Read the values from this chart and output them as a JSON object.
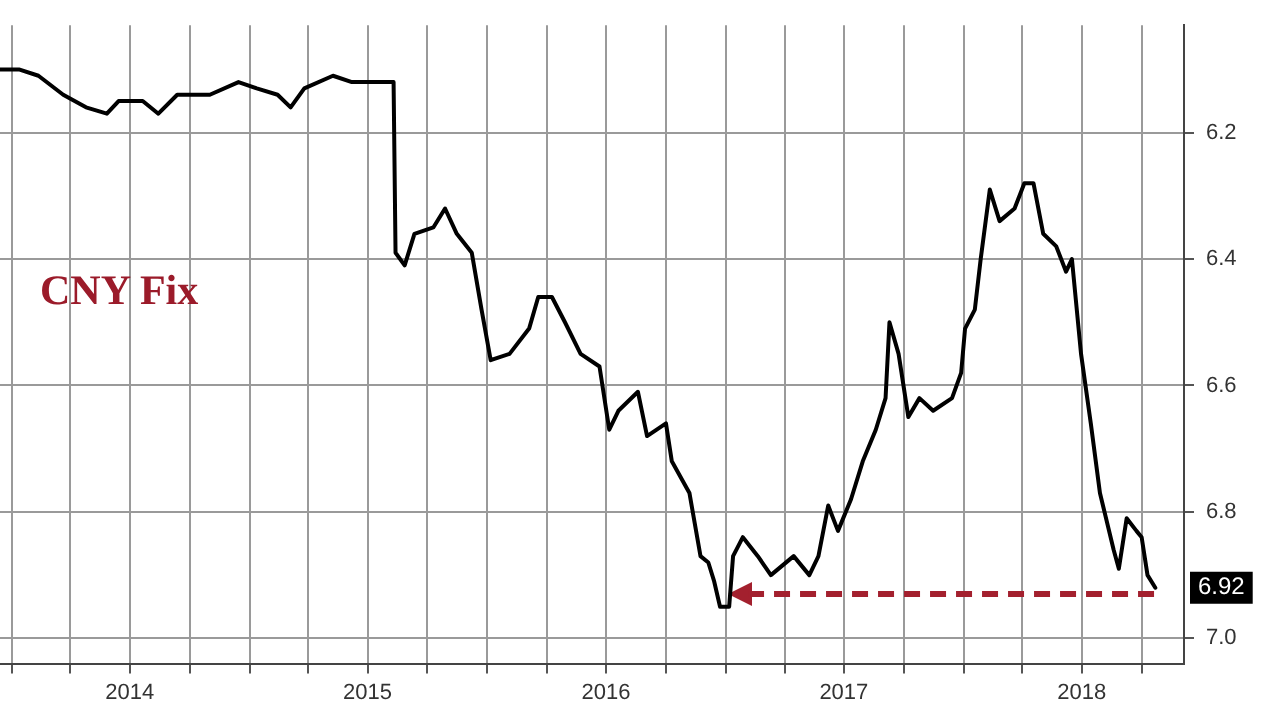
{
  "chart_data": {
    "type": "line",
    "annotations": [
      "CNY Fix",
      {
        "text": "6.92",
        "x": "2018-10-22",
        "y": 6.92
      }
    ],
    "x": [
      "2013-12-14",
      "2014-01-12",
      "2014-02-11",
      "2014-03-21",
      "2014-04-25",
      "2014-05-27",
      "2014-06-14",
      "2014-07-21",
      "2014-08-14",
      "2014-09-12",
      "2014-11-01",
      "2014-12-15",
      "2015-01-12",
      "2015-02-13",
      "2015-03-05",
      "2015-03-26",
      "2015-05-09",
      "2015-06-07",
      "2015-07-06",
      "2015-08-10",
      "2015-08-13",
      "2015-08-27",
      "2015-09-11",
      "2015-10-10",
      "2015-10-28",
      "2015-11-15",
      "2015-12-08",
      "2015-12-23",
      "2016-01-06",
      "2016-02-04",
      "2016-03-05",
      "2016-03-19",
      "2016-04-09",
      "2016-04-29",
      "2016-05-23",
      "2016-06-21",
      "2016-07-06",
      "2016-07-20",
      "2016-08-19",
      "2016-09-02",
      "2016-10-01",
      "2016-10-10",
      "2016-11-06",
      "2016-11-23",
      "2016-12-05",
      "2016-12-14",
      "2016-12-23",
      "2017-01-06",
      "2017-01-12",
      "2017-01-27",
      "2017-02-19",
      "2017-03-11",
      "2017-04-15",
      "2017-05-09",
      "2017-05-23",
      "2017-06-07",
      "2017-06-22",
      "2017-07-12",
      "2017-07-30",
      "2017-08-19",
      "2017-09-03",
      "2017-09-09",
      "2017-09-23",
      "2017-10-08",
      "2017-10-25",
      "2017-11-15",
      "2017-12-14",
      "2017-12-28",
      "2018-01-03",
      "2018-01-18",
      "2018-01-27",
      "2018-02-10",
      "2018-02-25",
      "2018-03-20",
      "2018-04-04",
      "2018-04-18",
      "2018-05-03",
      "2018-05-23",
      "2018-06-07",
      "2018-06-16",
      "2018-06-30",
      "2018-07-15",
      "2018-07-29",
      "2018-08-19",
      "2018-08-27",
      "2018-09-08",
      "2018-09-23",
      "2018-10-01",
      "2018-10-10",
      "2018-10-22"
    ],
    "series": [
      {
        "color": "#000000",
        "values": [
          6.1,
          6.1,
          6.11,
          6.14,
          6.16,
          6.17,
          6.15,
          6.15,
          6.17,
          6.14,
          6.14,
          6.12,
          6.13,
          6.14,
          6.16,
          6.13,
          6.11,
          6.12,
          6.12,
          6.12,
          6.39,
          6.41,
          6.36,
          6.35,
          6.32,
          6.36,
          6.39,
          6.48,
          6.56,
          6.55,
          6.51,
          6.46,
          6.46,
          6.5,
          6.55,
          6.57,
          6.67,
          6.64,
          6.61,
          6.68,
          6.66,
          6.72,
          6.77,
          6.87,
          6.88,
          6.91,
          6.95,
          6.95,
          6.87,
          6.84,
          6.87,
          6.9,
          6.87,
          6.9,
          6.87,
          6.79,
          6.83,
          6.78,
          6.72,
          6.67,
          6.62,
          6.5,
          6.55,
          6.65,
          6.62,
          6.64,
          6.62,
          6.58,
          6.51,
          6.48,
          6.4,
          6.29,
          6.34,
          6.32,
          6.28,
          6.28,
          6.36,
          6.38,
          6.42,
          6.4,
          6.55,
          6.66,
          6.77,
          6.86,
          6.89,
          6.81,
          6.83,
          6.84,
          6.9,
          6.92
        ]
      }
    ],
    "xlim": [
      "2013-12-14",
      "2018-12-05"
    ],
    "xticks": [
      {
        "value": "2014-01-01",
        "label": null
      },
      {
        "value": "2014-04-01",
        "label": null
      },
      {
        "value": "2014-07-01",
        "label": "2014"
      },
      {
        "value": "2014-10-01",
        "label": null
      },
      {
        "value": "2015-01-01",
        "label": null
      },
      {
        "value": "2015-04-01",
        "label": null
      },
      {
        "value": "2015-07-01",
        "label": "2015"
      },
      {
        "value": "2015-10-01",
        "label": null
      },
      {
        "value": "2016-01-01",
        "label": null
      },
      {
        "value": "2016-04-01",
        "label": null
      },
      {
        "value": "2016-07-01",
        "label": "2016"
      },
      {
        "value": "2016-10-01",
        "label": null
      },
      {
        "value": "2017-01-01",
        "label": null
      },
      {
        "value": "2017-04-01",
        "label": null
      },
      {
        "value": "2017-07-01",
        "label": "2017"
      },
      {
        "value": "2017-10-01",
        "label": null
      },
      {
        "value": "2018-01-01",
        "label": null
      },
      {
        "value": "2018-04-01",
        "label": null
      },
      {
        "value": "2018-07-01",
        "label": "2018"
      },
      {
        "value": "2018-10-01",
        "label": null
      }
    ],
    "ylim": [
      7.04,
      6.03
    ],
    "yticks": [
      {
        "value": 6.2,
        "label": "6.2"
      },
      {
        "value": 6.4,
        "label": "6.4"
      },
      {
        "value": 6.6,
        "label": "6.6"
      },
      {
        "value": 6.8,
        "label": "6.8"
      },
      {
        "value": 7.0,
        "label": "7.0"
      }
    ],
    "ref_lines": [
      {
        "axis": "y",
        "value": 6.93,
        "color": "#a3202e",
        "line_style": "dashed"
      }
    ],
    "grid": true,
    "legend": false,
    "marker": "none",
    "line_style": "solid"
  }
}
